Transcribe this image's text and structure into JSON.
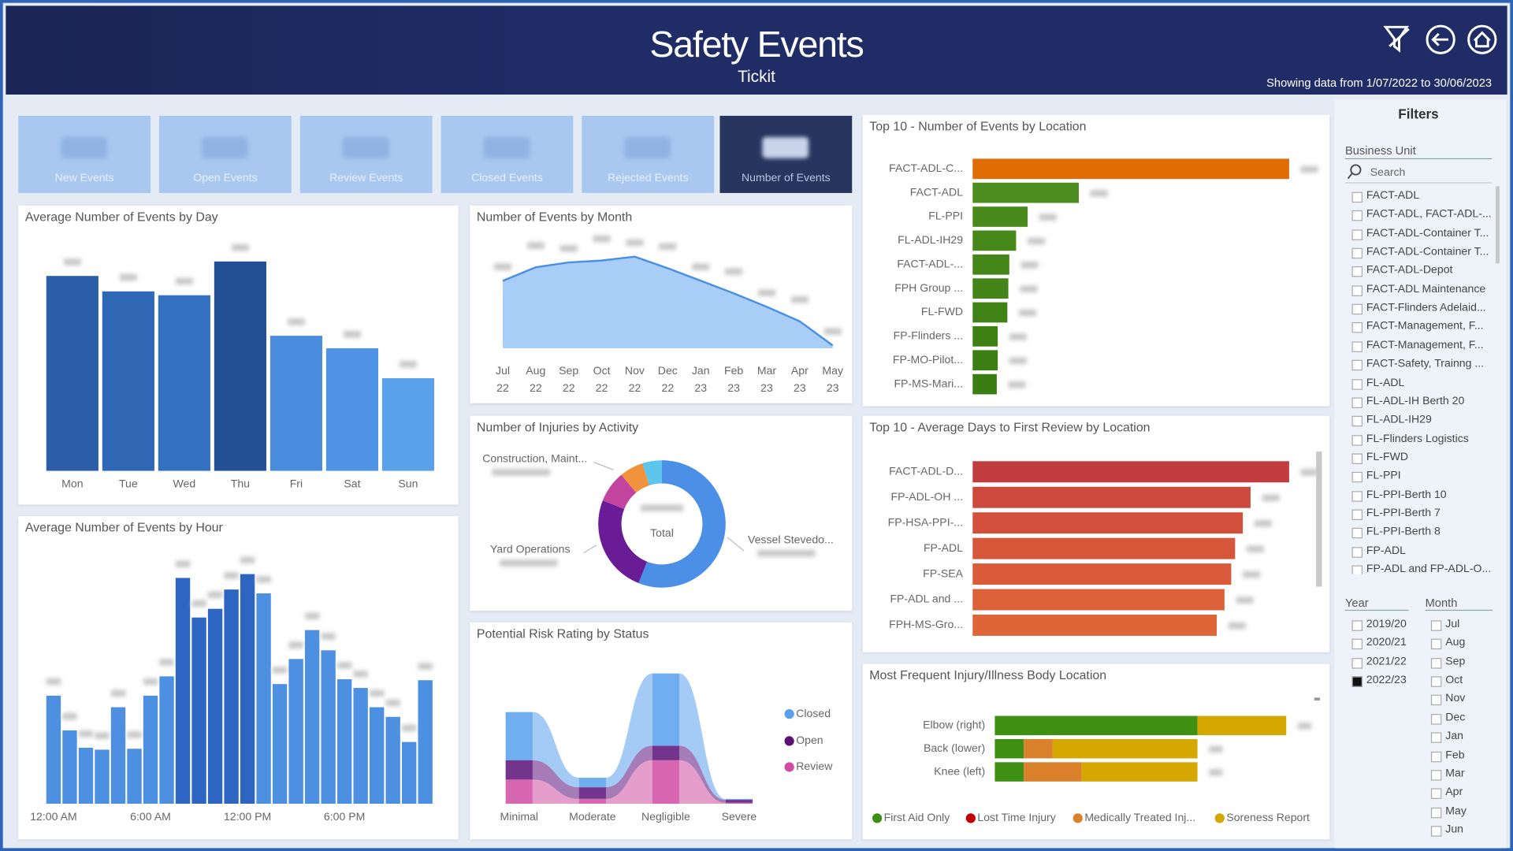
{
  "header": {
    "title": "Safety Events",
    "subtitle": "Tickit",
    "date_range": "Showing data from 1/07/2022 to 30/06/2023"
  },
  "kpis": [
    "New Events",
    "Open Events",
    "Review Events",
    "Closed Events",
    "Rejected Events",
    "Number of Events"
  ],
  "chart_data": [
    {
      "type": "bar",
      "title": "Average Number of Events by Day",
      "categories": [
        "Mon",
        "Tue",
        "Wed",
        "Thu",
        "Fri",
        "Sat",
        "Sun"
      ],
      "values": [
        202,
        186,
        182,
        217,
        140,
        127,
        96
      ],
      "colors": [
        "#2b5da8",
        "#2f67b5",
        "#3471c0",
        "#234f94",
        "#4a8ddf",
        "#4f94e4",
        "#5aa1ec"
      ]
    },
    {
      "type": "bar",
      "title": "Average Number of Events by Hour",
      "categories": [
        "12:00 AM",
        null,
        null,
        null,
        null,
        null,
        "6:00 AM",
        null,
        null,
        null,
        null,
        null,
        "12:00 PM",
        null,
        null,
        null,
        null,
        null,
        "6:00 PM",
        null,
        null,
        null,
        null,
        null
      ],
      "values": [
        112,
        76,
        58,
        56,
        100,
        57,
        112,
        132,
        234,
        193,
        202,
        222,
        238,
        218,
        124,
        150,
        180,
        159,
        129,
        120,
        100,
        90,
        64,
        128
      ],
      "colors": [
        "#4d8fe0",
        "#4d8fe0",
        "#4d8fe0",
        "#4d8fe0",
        "#4d8fe0",
        "#4d8fe0",
        "#4d8fe0",
        "#4d8fe0",
        "#2e64c2",
        "#2e64c2",
        "#2e64c2",
        "#2e64c2",
        "#2e64c2",
        "#4d8fe0",
        "#4d8fe0",
        "#4d8fe0",
        "#4d8fe0",
        "#4d8fe0",
        "#4d8fe0",
        "#4d8fe0",
        "#4d8fe0",
        "#4d8fe0",
        "#4d8fe0",
        "#4d8fe0"
      ]
    },
    {
      "type": "area",
      "title": "Number of Events by Month",
      "categories": [
        "Jul",
        "Aug",
        "Sep",
        "Oct",
        "Nov",
        "Dec",
        "Jan",
        "Feb",
        "Mar",
        "Apr",
        "May"
      ],
      "category_years": [
        "22",
        "22",
        "22",
        "22",
        "22",
        "22",
        "23",
        "23",
        "23",
        "23",
        "23"
      ],
      "values": [
        70,
        84,
        89,
        91,
        95,
        83,
        70,
        57,
        43,
        28,
        3
      ],
      "color": "#4a8fe3",
      "fill": "#a8cdf6"
    },
    {
      "type": "donut",
      "title": "Number of Injuries by Activity",
      "center_label": "Total",
      "categories": [
        "Vessel Stevedo...",
        "Yard Operations",
        "Construction, Maint...",
        null,
        null
      ],
      "values": [
        56,
        25,
        8,
        6,
        5
      ],
      "colors": [
        "#4b8fe6",
        "#6a1b96",
        "#c3449f",
        "#f1923c",
        "#5cc7ea"
      ]
    },
    {
      "type": "ribbon",
      "title": "Potential Risk Rating by Status",
      "categories": [
        "Minimal",
        "Moderate",
        "Negligible",
        "Severe"
      ],
      "series": [
        {
          "name": "Closed",
          "color": "#58a0ec",
          "values": [
            50,
            10,
            75,
            1
          ]
        },
        {
          "name": "Open",
          "color": "#5b1078",
          "values": [
            20,
            12,
            15,
            3
          ]
        },
        {
          "name": "Review",
          "color": "#d04ca3",
          "values": [
            25,
            5,
            45,
            1
          ]
        }
      ]
    },
    {
      "type": "hbar",
      "title": "Top 10 - Number of Events by Location",
      "categories": [
        "FACT-ADL-C...",
        "FACT-ADL",
        "FL-PPI",
        "FL-ADL-IH29",
        "FACT-ADL-...",
        "FPH Group ...",
        "FL-FWD",
        "FP-Flinders ...",
        "FP-MO-Pilot...",
        "FP-MS-Mari..."
      ],
      "values": [
        328,
        110,
        57,
        45,
        38,
        37,
        36,
        26,
        26,
        25
      ],
      "colors": [
        "#df6c04",
        "#4d8c1f",
        "#4a8a1c",
        "#47881a",
        "#448618",
        "#428417",
        "#3f8215",
        "#3d8014",
        "#3b7e13",
        "#3a7d12"
      ]
    },
    {
      "type": "hbar",
      "title": "Top 10 - Average Days to First Review by Location",
      "categories": [
        "FACT-ADL-D...",
        "FP-ADL-OH ...",
        "FP-HSA-PPI-...",
        "FP-ADL",
        "FP-SEA",
        "FP-ADL and ...",
        "FPH-MS-Gro..."
      ],
      "values": [
        328,
        288,
        280,
        272,
        268,
        261,
        253
      ],
      "colors": [
        "#c23d3f",
        "#cd483d",
        "#d2503b",
        "#d6563a",
        "#d95b39",
        "#dc6038",
        "#de6537"
      ]
    },
    {
      "type": "stacked-hbar",
      "title": "Most Frequent Injury/Illness Body Location",
      "categories": [
        "Elbow (right)",
        "Back (lower)",
        "Knee (left)"
      ],
      "series": [
        {
          "name": "First Aid Only",
          "color": "#3f8f12",
          "values": [
            210,
            30,
            30
          ]
        },
        {
          "name": "Lost Time Injury",
          "color": "#c00000",
          "values": [
            0,
            0,
            0
          ]
        },
        {
          "name": "Medically Treated Inj...",
          "color": "#d9822b",
          "values": [
            0,
            30,
            60
          ]
        },
        {
          "name": "Soreness Report",
          "color": "#d4a800",
          "values": [
            92,
            150,
            120
          ]
        }
      ]
    }
  ],
  "filters": {
    "title": "Filters",
    "business_unit": {
      "label": "Business Unit",
      "search": "Search",
      "items": [
        "FACT-ADL",
        "FACT-ADL, FACT-ADL-...",
        "FACT-ADL-Container T...",
        "FACT-ADL-Container T...",
        "FACT-ADL-Depot",
        "FACT-ADL Maintenance",
        "FACT-Flinders Adelaid...",
        "FACT-Management, F...",
        "FACT-Management, F...",
        "FACT-Safety, Trainng ...",
        "FL-ADL",
        "FL-ADL-IH Berth 20",
        "FL-ADL-IH29",
        "FL-Flinders Logistics",
        "FL-FWD",
        "FL-PPI",
        "FL-PPI-Berth 10",
        "FL-PPI-Berth 7",
        "FL-PPI-Berth 8",
        "FP-ADL",
        "FP-ADL and FP-ADL-O..."
      ]
    },
    "year": {
      "label": "Year",
      "items": [
        "2019/20",
        "2020/21",
        "2021/22",
        "2022/23"
      ],
      "selected": "2022/23"
    },
    "month": {
      "label": "Month",
      "items": [
        "Jul",
        "Aug",
        "Sep",
        "Oct",
        "Nov",
        "Dec",
        "Jan",
        "Feb",
        "Mar",
        "Apr",
        "May",
        "Jun"
      ]
    }
  }
}
